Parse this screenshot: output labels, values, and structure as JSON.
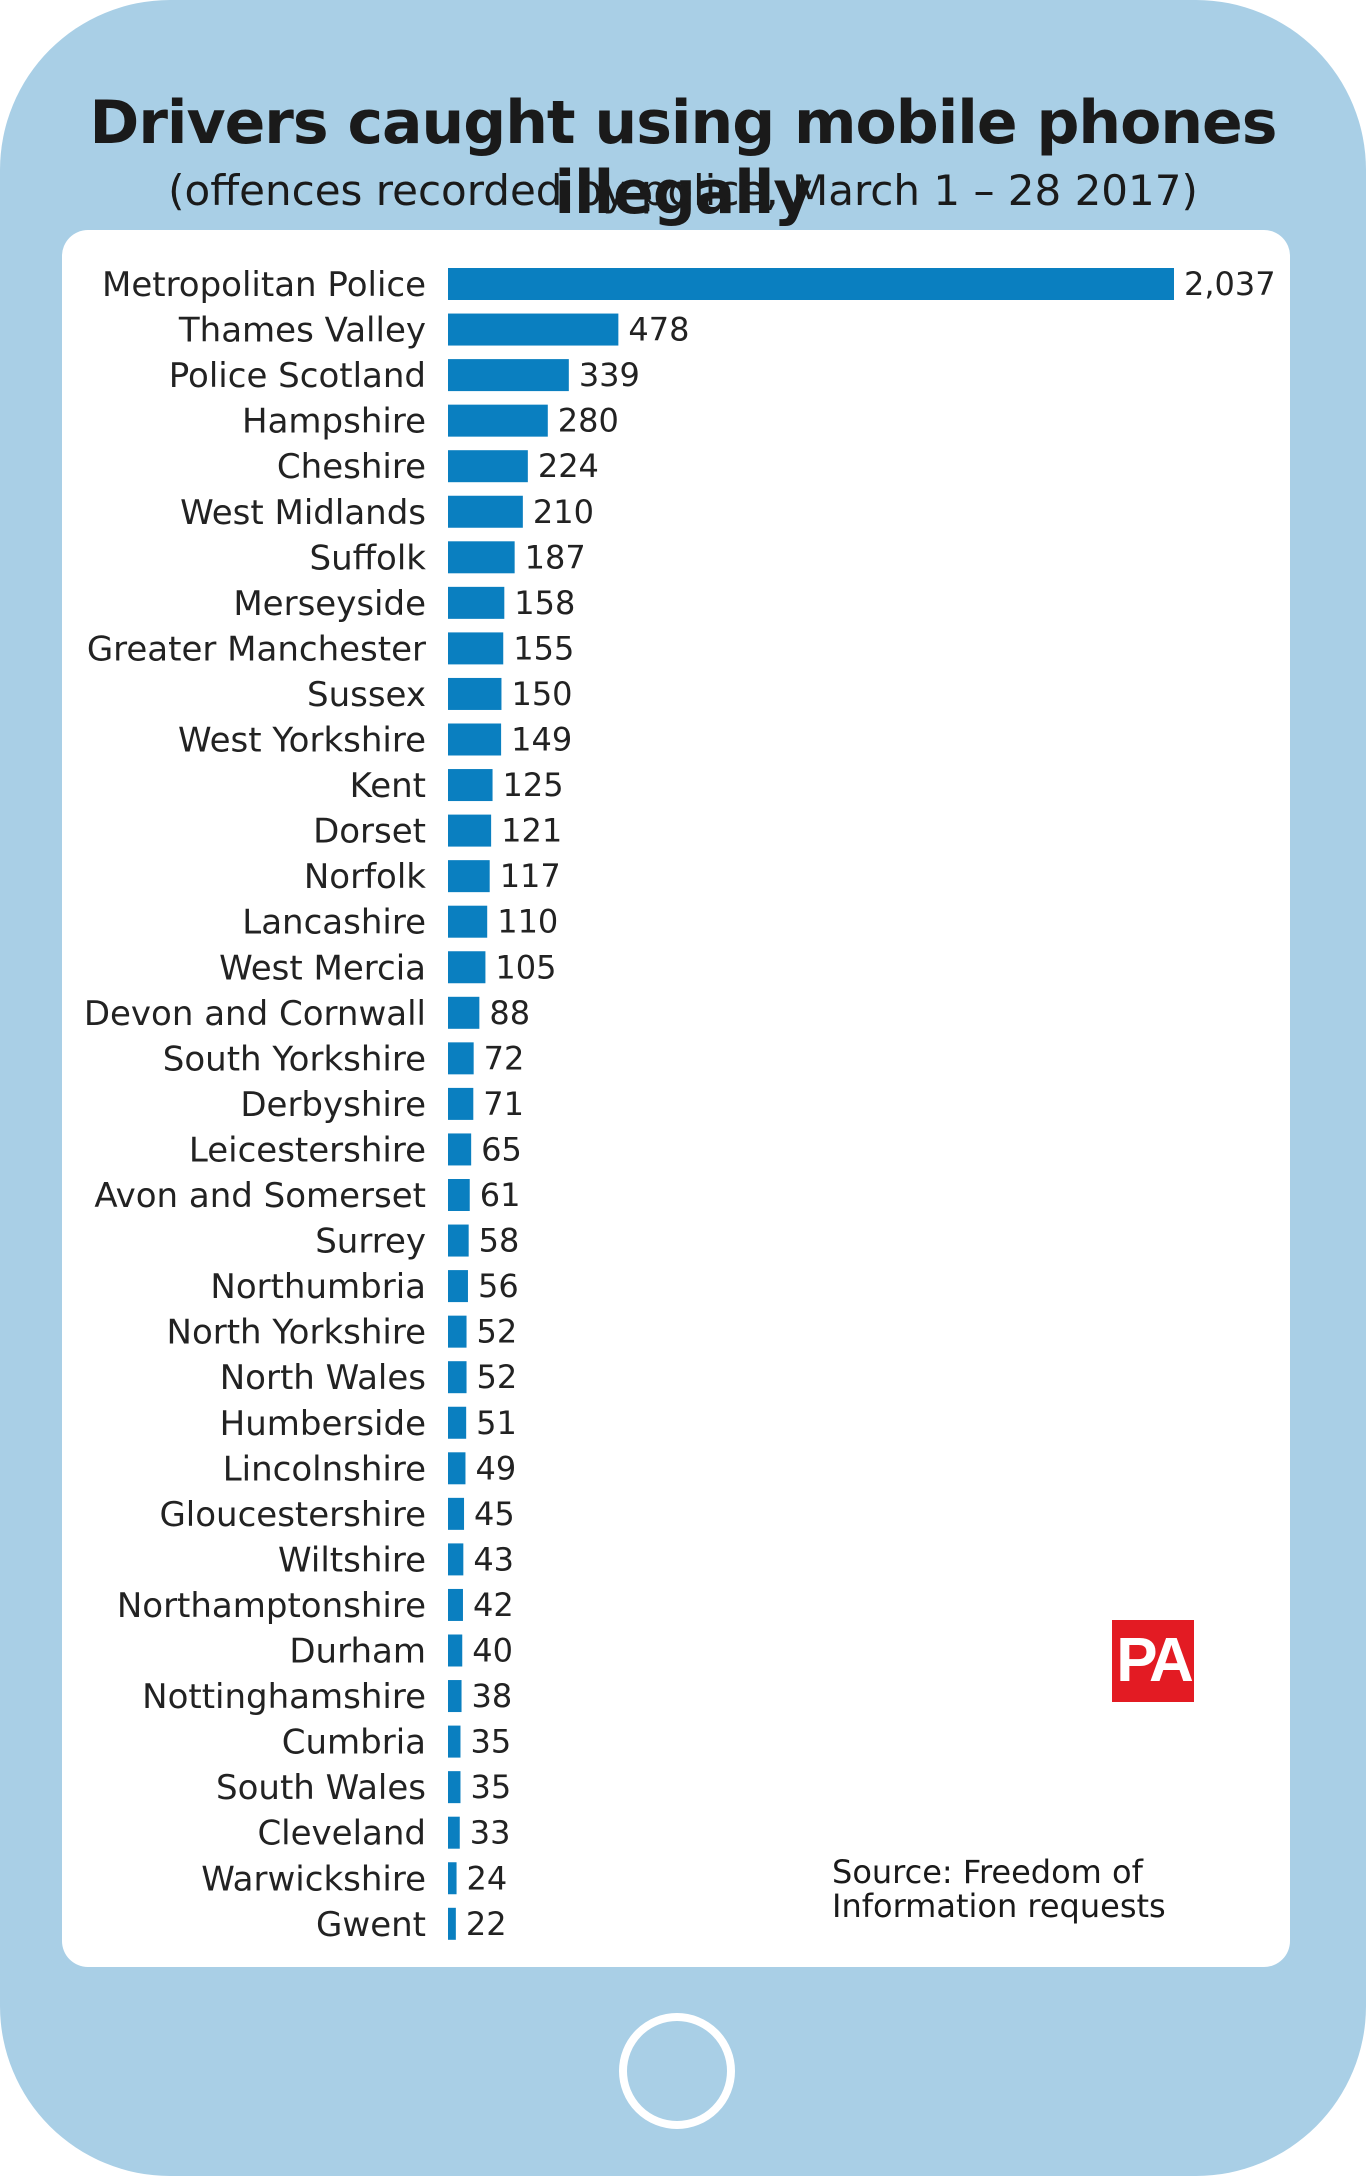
{
  "title": "Drivers caught using mobile phones illegally",
  "subtitle": "(offences recorded by police, March 1 – 28 2017)",
  "source": "Source: Freedom of Information requests",
  "logo": "PA",
  "colors": {
    "frame": "#a9cfe6",
    "bar": "#0a7fc0",
    "logo": "#e31b23"
  },
  "chart_data": {
    "type": "bar",
    "orientation": "horizontal",
    "title": "Drivers caught using mobile phones illegally",
    "subtitle": "(offences recorded by police, March 1 – 28 2017)",
    "grid": false,
    "categories": [
      "Metropolitan Police",
      "Thames Valley",
      "Police Scotland",
      "Hampshire",
      "Cheshire",
      "West Midlands",
      "Suffolk",
      "Merseyside",
      "Greater Manchester",
      "Sussex",
      "West Yorkshire",
      "Kent",
      "Dorset",
      "Norfolk",
      "Lancashire",
      "West Mercia",
      "Devon and Cornwall",
      "South Yorkshire",
      "Derbyshire",
      "Leicestershire",
      "Avon and Somerset",
      "Surrey",
      "Northumbria",
      "North Yorkshire",
      "North Wales",
      "Humberside",
      "Lincolnshire",
      "Gloucestershire",
      "Wiltshire",
      "Northamptonshire",
      "Durham",
      "Nottinghamshire",
      "Cumbria",
      "South Wales",
      "Cleveland",
      "Warwickshire",
      "Gwent"
    ],
    "values": [
      2037,
      478,
      339,
      280,
      224,
      210,
      187,
      158,
      155,
      150,
      149,
      125,
      121,
      117,
      110,
      105,
      88,
      72,
      71,
      65,
      61,
      58,
      56,
      52,
      52,
      51,
      49,
      45,
      43,
      42,
      40,
      38,
      35,
      35,
      33,
      24,
      22
    ],
    "value_labels": [
      "2,037",
      "478",
      "339",
      "280",
      "224",
      "210",
      "187",
      "158",
      "155",
      "150",
      "149",
      "125",
      "121",
      "117",
      "110",
      "105",
      "88",
      "72",
      "71",
      "65",
      "61",
      "58",
      "56",
      "52",
      "52",
      "51",
      "49",
      "45",
      "43",
      "42",
      "40",
      "38",
      "35",
      "35",
      "33",
      "24",
      "22"
    ],
    "xlim": [
      0,
      2037
    ]
  }
}
